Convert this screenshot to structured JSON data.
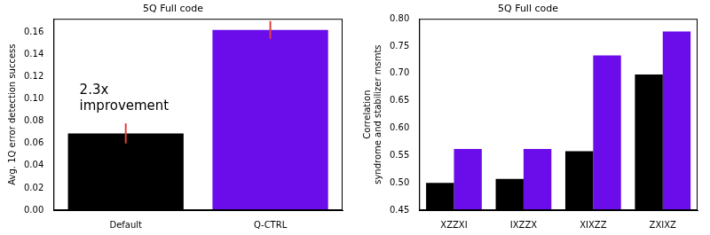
{
  "chart_data": [
    {
      "type": "bar",
      "title": "5Q Full code",
      "categories": [
        "Default",
        "Q-CTRL"
      ],
      "values": [
        0.069,
        0.162
      ],
      "errors": [
        0.009,
        0.008
      ],
      "colors": [
        "#000000",
        "#6a0dea"
      ],
      "ylabel": "Avg. 1Q error detection success",
      "ylim": [
        0,
        0.172
      ],
      "yticks": [
        {
          "value": 0,
          "label": "0.00"
        },
        0.02,
        0.04,
        0.06,
        0.08,
        {
          "value": 0.1,
          "label": "0.10"
        },
        0.12,
        0.14,
        0.16
      ],
      "annotation": [
        "2.3x",
        "improvement"
      ],
      "grid": false
    },
    {
      "type": "bar",
      "title": "5Q Full code",
      "categories": [
        "XZZXI",
        "IXZZX",
        "XIXZZ",
        "ZXIXZ"
      ],
      "series": [
        {
          "color": "#000000",
          "values": [
            0.5,
            0.507,
            0.558,
            0.698
          ]
        },
        {
          "color": "#6a0dea",
          "values": [
            0.562,
            0.562,
            0.733,
            0.777
          ]
        }
      ],
      "ylabel": [
        "Correlation",
        "syndrome and stabilizer msmts"
      ],
      "ylim": [
        0.45,
        0.8
      ],
      "yticks": [
        0.45,
        {
          "value": 0.5,
          "label": "0.50"
        },
        0.55,
        {
          "value": 0.6,
          "label": "0.60"
        },
        0.65,
        {
          "value": 0.7,
          "label": "0.70"
        },
        0.75,
        {
          "value": 0.8,
          "label": "0.80"
        }
      ],
      "grid": false
    }
  ]
}
